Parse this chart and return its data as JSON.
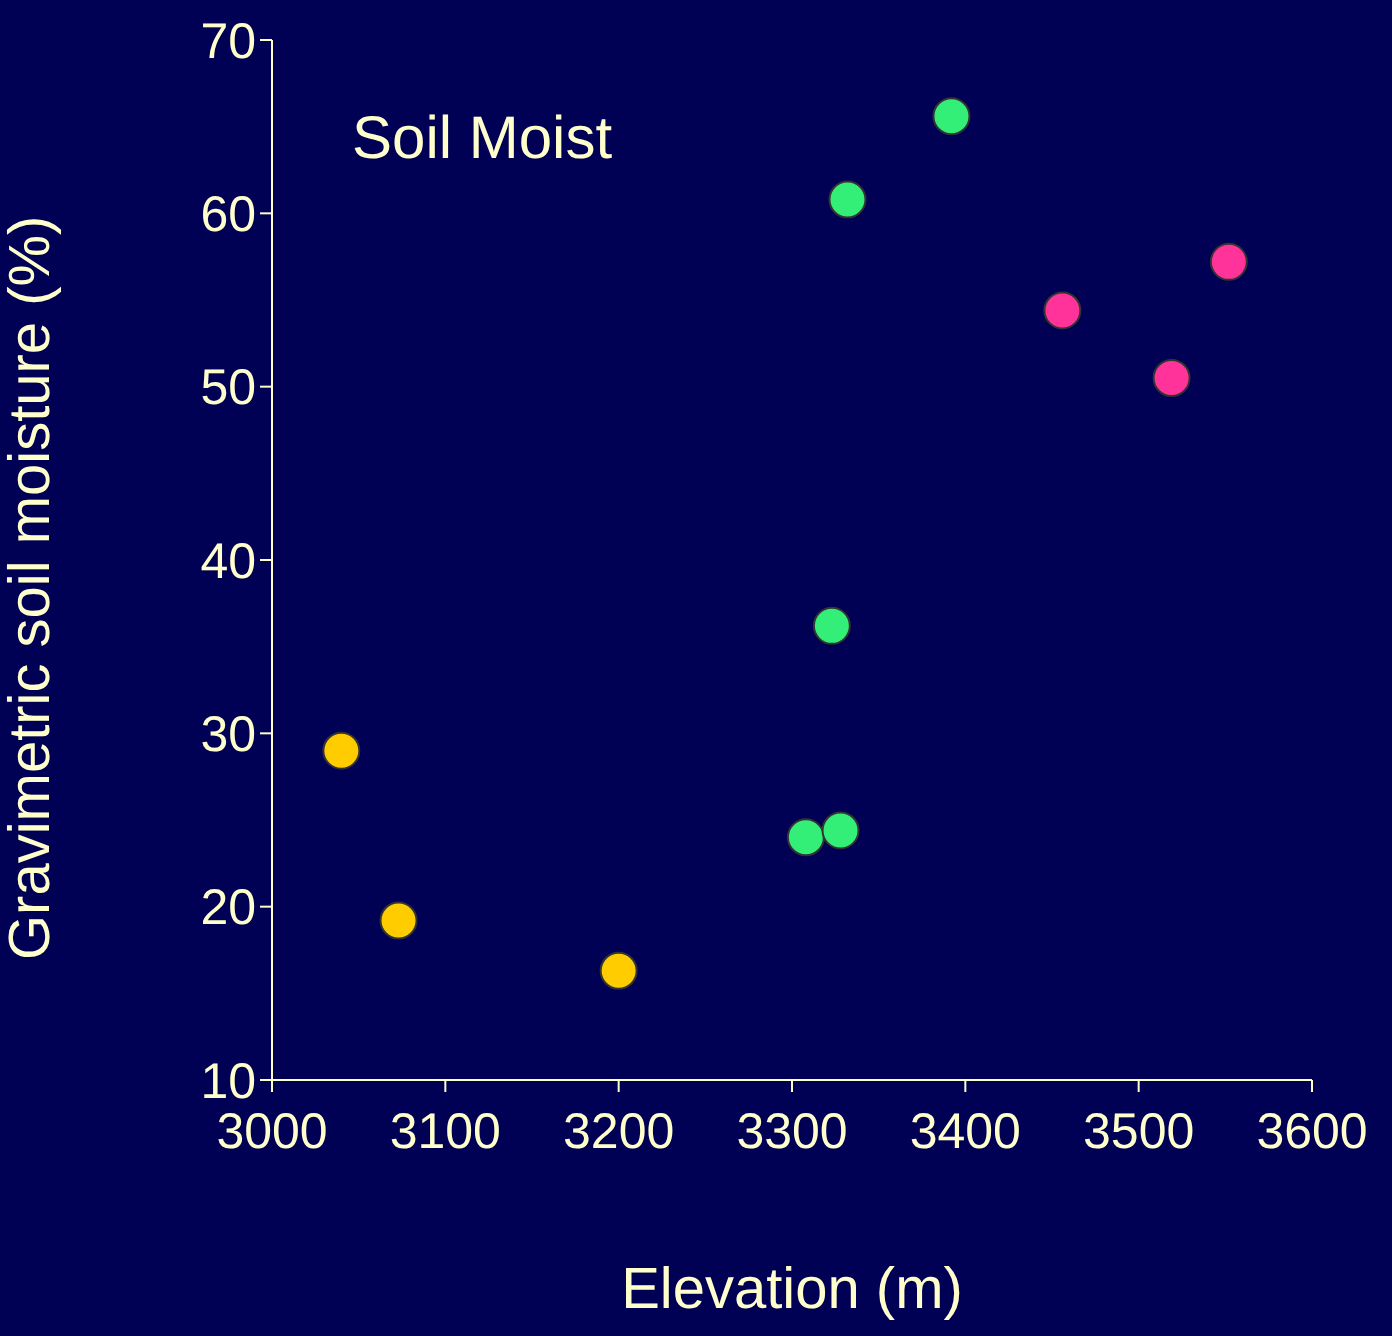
{
  "chart_data": {
    "type": "scatter",
    "xlabel": "Elevation (m)",
    "ylabel": "Gravimetric soil moisture (%)",
    "annotations": [
      "Soil Moist"
    ],
    "xlim": [
      3000,
      3600
    ],
    "xticks": [
      3000,
      3100,
      3200,
      3300,
      3400,
      3500,
      3600
    ],
    "ylim": [
      10,
      70
    ],
    "yticks": [
      10,
      20,
      30,
      40,
      50,
      60,
      70
    ],
    "grid": false,
    "marker": "circle",
    "series": [
      {
        "color": "#ffcc00",
        "x": [
          3040,
          3073,
          3200
        ],
        "values": [
          29.0,
          19.2,
          16.3
        ]
      },
      {
        "color": "#33ee77",
        "x": [
          3332,
          3392,
          3323,
          3308,
          3328
        ],
        "values": [
          60.8,
          65.6,
          36.2,
          24.0,
          24.4
        ]
      },
      {
        "color": "#ff3399",
        "x": [
          3456,
          3519,
          3552
        ],
        "values": [
          54.4,
          50.5,
          57.2
        ]
      }
    ]
  }
}
